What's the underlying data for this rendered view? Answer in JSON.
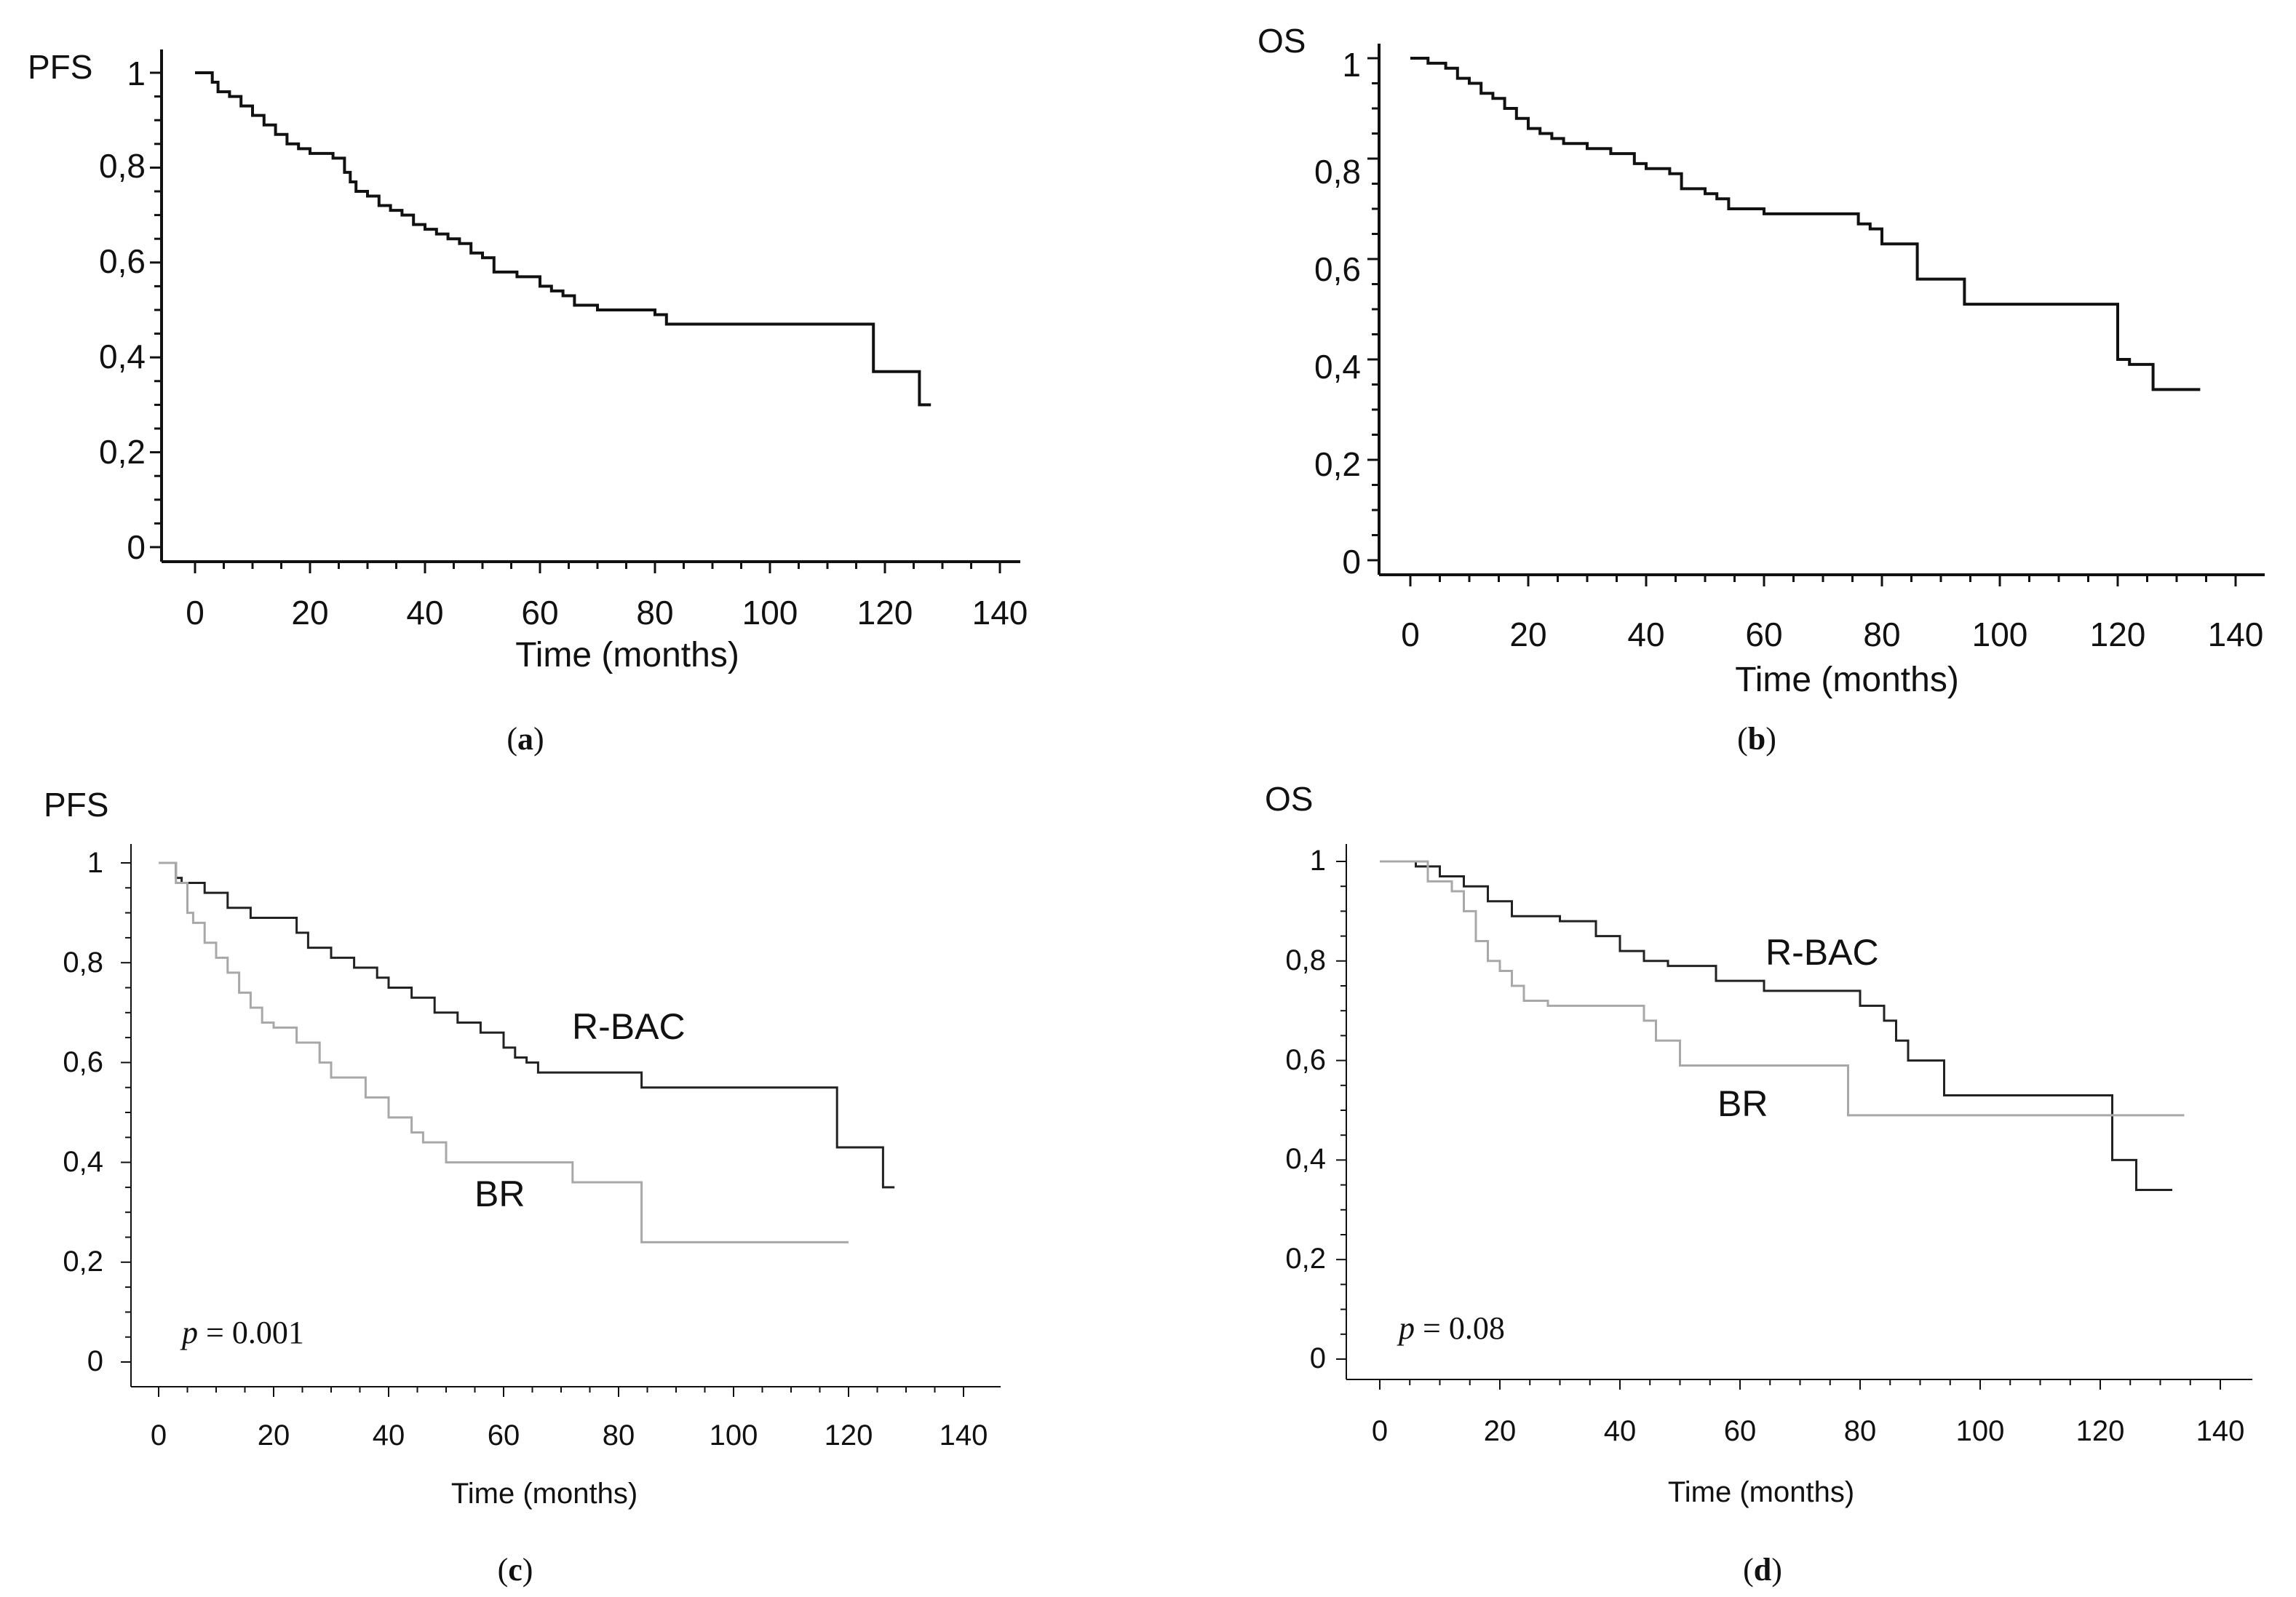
{
  "chart_data": [
    {
      "id": "a",
      "type": "line",
      "subtype": "kaplan-meier",
      "caption": "a",
      "ylabel": "PFS",
      "xlabel": "Time (months)",
      "xlim": [
        0,
        140
      ],
      "ylim": [
        0,
        1
      ],
      "xticks": [
        0,
        20,
        40,
        60,
        80,
        100,
        120,
        140
      ],
      "xtick_labels": [
        "0",
        "20",
        "40",
        "60",
        "80",
        "100",
        "120",
        "140"
      ],
      "yticks": [
        0,
        0.2,
        0.4,
        0.6,
        0.8,
        1
      ],
      "ytick_labels": [
        "0",
        "0,2",
        "0,4",
        "0,6",
        "0,8",
        "1"
      ],
      "annotation": "",
      "series": [
        {
          "name": "PFS",
          "color": "#111111",
          "x": [
            0,
            3,
            4,
            6,
            8,
            10,
            12,
            14,
            16,
            18,
            20,
            24,
            26,
            27,
            28,
            30,
            32,
            34,
            36,
            38,
            40,
            42,
            44,
            46,
            48,
            50,
            52,
            56,
            60,
            62,
            64,
            66,
            70,
            80,
            82,
            84,
            100,
            118,
            126,
            128
          ],
          "y": [
            1,
            0.98,
            0.96,
            0.95,
            0.93,
            0.91,
            0.89,
            0.87,
            0.85,
            0.84,
            0.83,
            0.82,
            0.79,
            0.77,
            0.75,
            0.74,
            0.72,
            0.71,
            0.7,
            0.68,
            0.67,
            0.66,
            0.65,
            0.64,
            0.62,
            0.61,
            0.58,
            0.57,
            0.55,
            0.54,
            0.53,
            0.51,
            0.5,
            0.49,
            0.47,
            0.47,
            0.47,
            0.37,
            0.3,
            0.3
          ]
        }
      ]
    },
    {
      "id": "b",
      "type": "line",
      "subtype": "kaplan-meier",
      "caption": "b",
      "ylabel": "OS",
      "xlabel": "Time (months)",
      "xlim": [
        0,
        140
      ],
      "ylim": [
        0,
        1
      ],
      "xticks": [
        0,
        20,
        40,
        60,
        80,
        100,
        120,
        140
      ],
      "xtick_labels": [
        "0",
        "20",
        "40",
        "60",
        "80",
        "100",
        "120",
        "140"
      ],
      "yticks": [
        0,
        0.2,
        0.4,
        0.6,
        0.8,
        1
      ],
      "ytick_labels": [
        "0",
        "0,2",
        "0,4",
        "0,6",
        "0,8",
        "1"
      ],
      "annotation": "",
      "series": [
        {
          "name": "OS",
          "color": "#111111",
          "x": [
            0,
            3,
            6,
            8,
            10,
            12,
            14,
            16,
            18,
            20,
            22,
            24,
            26,
            30,
            34,
            38,
            40,
            44,
            46,
            50,
            52,
            54,
            60,
            76,
            78,
            80,
            86,
            94,
            100,
            120,
            122,
            126,
            134
          ],
          "y": [
            1,
            0.99,
            0.98,
            0.96,
            0.95,
            0.93,
            0.92,
            0.9,
            0.88,
            0.86,
            0.85,
            0.84,
            0.83,
            0.82,
            0.81,
            0.79,
            0.78,
            0.77,
            0.74,
            0.73,
            0.72,
            0.7,
            0.69,
            0.67,
            0.66,
            0.63,
            0.56,
            0.51,
            0.51,
            0.4,
            0.39,
            0.34,
            0.34
          ]
        }
      ]
    },
    {
      "id": "c",
      "type": "line",
      "subtype": "kaplan-meier",
      "caption": "c",
      "ylabel": "PFS",
      "xlabel": "Time (months)",
      "xlim": [
        0,
        140
      ],
      "ylim": [
        0,
        1
      ],
      "xticks": [
        0,
        20,
        40,
        60,
        80,
        100,
        120,
        140
      ],
      "xtick_labels": [
        "0",
        "20",
        "40",
        "60",
        "80",
        "100",
        "120",
        "140"
      ],
      "yticks": [
        0,
        0.2,
        0.4,
        0.6,
        0.8,
        1
      ],
      "ytick_labels": [
        "0",
        "0,2",
        "0,4",
        "0,6",
        "0,8",
        "1"
      ],
      "annotation": "p = 0.001",
      "series": [
        {
          "name": "R-BAC",
          "color": "#222222",
          "x": [
            0,
            3,
            4,
            8,
            12,
            16,
            24,
            26,
            30,
            34,
            38,
            40,
            44,
            48,
            52,
            56,
            60,
            62,
            64,
            66,
            70,
            84,
            100,
            118,
            126,
            128
          ],
          "y": [
            1,
            0.97,
            0.96,
            0.94,
            0.91,
            0.89,
            0.86,
            0.83,
            0.81,
            0.79,
            0.77,
            0.75,
            0.73,
            0.7,
            0.68,
            0.66,
            0.63,
            0.61,
            0.6,
            0.58,
            0.58,
            0.55,
            0.55,
            0.43,
            0.35,
            0.35
          ]
        },
        {
          "name": "BR",
          "color": "#a8a8a8",
          "x": [
            0,
            3,
            5,
            6,
            8,
            10,
            12,
            14,
            16,
            18,
            20,
            24,
            28,
            30,
            36,
            40,
            44,
            46,
            50,
            52,
            72,
            84,
            120
          ],
          "y": [
            1,
            0.96,
            0.9,
            0.88,
            0.84,
            0.81,
            0.78,
            0.74,
            0.71,
            0.68,
            0.67,
            0.64,
            0.6,
            0.57,
            0.53,
            0.49,
            0.46,
            0.44,
            0.4,
            0.4,
            0.36,
            0.24,
            0.24
          ]
        }
      ]
    },
    {
      "id": "d",
      "type": "line",
      "subtype": "kaplan-meier",
      "caption": "d",
      "ylabel": "OS",
      "xlabel": "Time (months)",
      "xlim": [
        0,
        140
      ],
      "ylim": [
        0,
        1
      ],
      "xticks": [
        0,
        20,
        40,
        60,
        80,
        100,
        120,
        140
      ],
      "xtick_labels": [
        "0",
        "20",
        "40",
        "60",
        "80",
        "100",
        "120",
        "140"
      ],
      "yticks": [
        0,
        0.2,
        0.4,
        0.6,
        0.8,
        1
      ],
      "ytick_labels": [
        "0",
        "0,2",
        "0,4",
        "0,6",
        "0,8",
        "1"
      ],
      "annotation": "p = 0.08",
      "series": [
        {
          "name": "R-BAC",
          "color": "#222222",
          "x": [
            0,
            6,
            10,
            14,
            18,
            22,
            30,
            36,
            40,
            44,
            48,
            56,
            64,
            76,
            80,
            84,
            86,
            88,
            94,
            100,
            120,
            122,
            126,
            132
          ],
          "y": [
            1,
            0.99,
            0.97,
            0.95,
            0.92,
            0.89,
            0.88,
            0.85,
            0.82,
            0.8,
            0.79,
            0.76,
            0.74,
            0.74,
            0.71,
            0.68,
            0.64,
            0.6,
            0.53,
            0.53,
            0.53,
            0.4,
            0.34,
            0.34
          ]
        },
        {
          "name": "BR",
          "color": "#a8a8a8",
          "x": [
            0,
            8,
            12,
            14,
            16,
            18,
            20,
            22,
            24,
            28,
            36,
            44,
            46,
            50,
            60,
            78,
            100,
            134
          ],
          "y": [
            1,
            0.96,
            0.94,
            0.9,
            0.84,
            0.8,
            0.78,
            0.75,
            0.72,
            0.71,
            0.71,
            0.68,
            0.64,
            0.59,
            0.59,
            0.49,
            0.49,
            0.49
          ]
        }
      ]
    }
  ]
}
